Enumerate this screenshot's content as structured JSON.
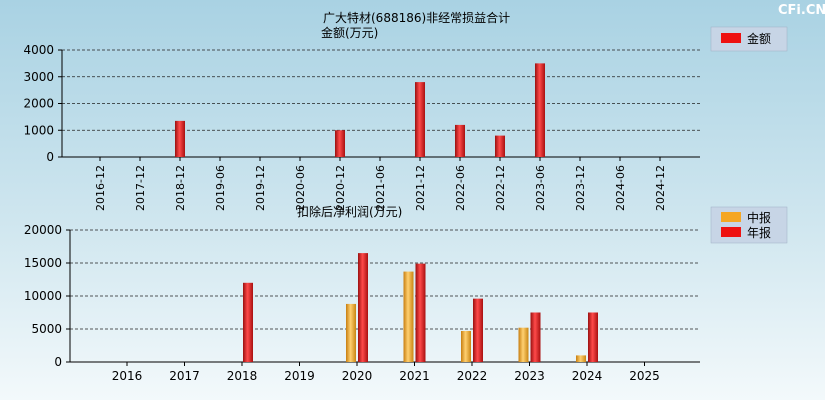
{
  "brand": "CFi.CN",
  "chart_data": [
    {
      "type": "bar",
      "title": "广大特材(688186)非经常损益合计",
      "ylabel": "金额(万元)",
      "categories": [
        "2016-12",
        "2017-12",
        "2018-12",
        "2019-06",
        "2019-12",
        "2020-06",
        "2020-12",
        "2021-06",
        "2021-12",
        "2022-06",
        "2022-12",
        "2023-06",
        "2023-12",
        "2024-06",
        "2024-12"
      ],
      "series": [
        {
          "name": "金额",
          "color": "#ee1111",
          "values": [
            null,
            null,
            1350,
            null,
            null,
            null,
            1000,
            null,
            2800,
            1200,
            800,
            3500,
            null,
            null,
            null
          ]
        }
      ],
      "ylim": [
        0,
        4000
      ],
      "yticks": [
        0,
        1000,
        2000,
        3000,
        4000
      ],
      "grid": true,
      "legend": "top-right"
    },
    {
      "type": "bar",
      "title": "扣除后净利润(万元)",
      "categories": [
        "2016",
        "2017",
        "2018",
        "2019",
        "2020",
        "2021",
        "2022",
        "2023",
        "2024",
        "2025"
      ],
      "series": [
        {
          "name": "中报",
          "color": "#f5a623",
          "values": [
            null,
            null,
            null,
            null,
            8800,
            13700,
            4700,
            5200,
            1000,
            null
          ]
        },
        {
          "name": "年报",
          "color": "#ee1111",
          "values": [
            null,
            null,
            12000,
            null,
            16500,
            14900,
            9600,
            7500,
            7500,
            null
          ]
        }
      ],
      "ylim": [
        0,
        20000
      ],
      "yticks": [
        0,
        5000,
        10000,
        15000,
        20000
      ],
      "grid": true,
      "legend": "top-right"
    }
  ]
}
